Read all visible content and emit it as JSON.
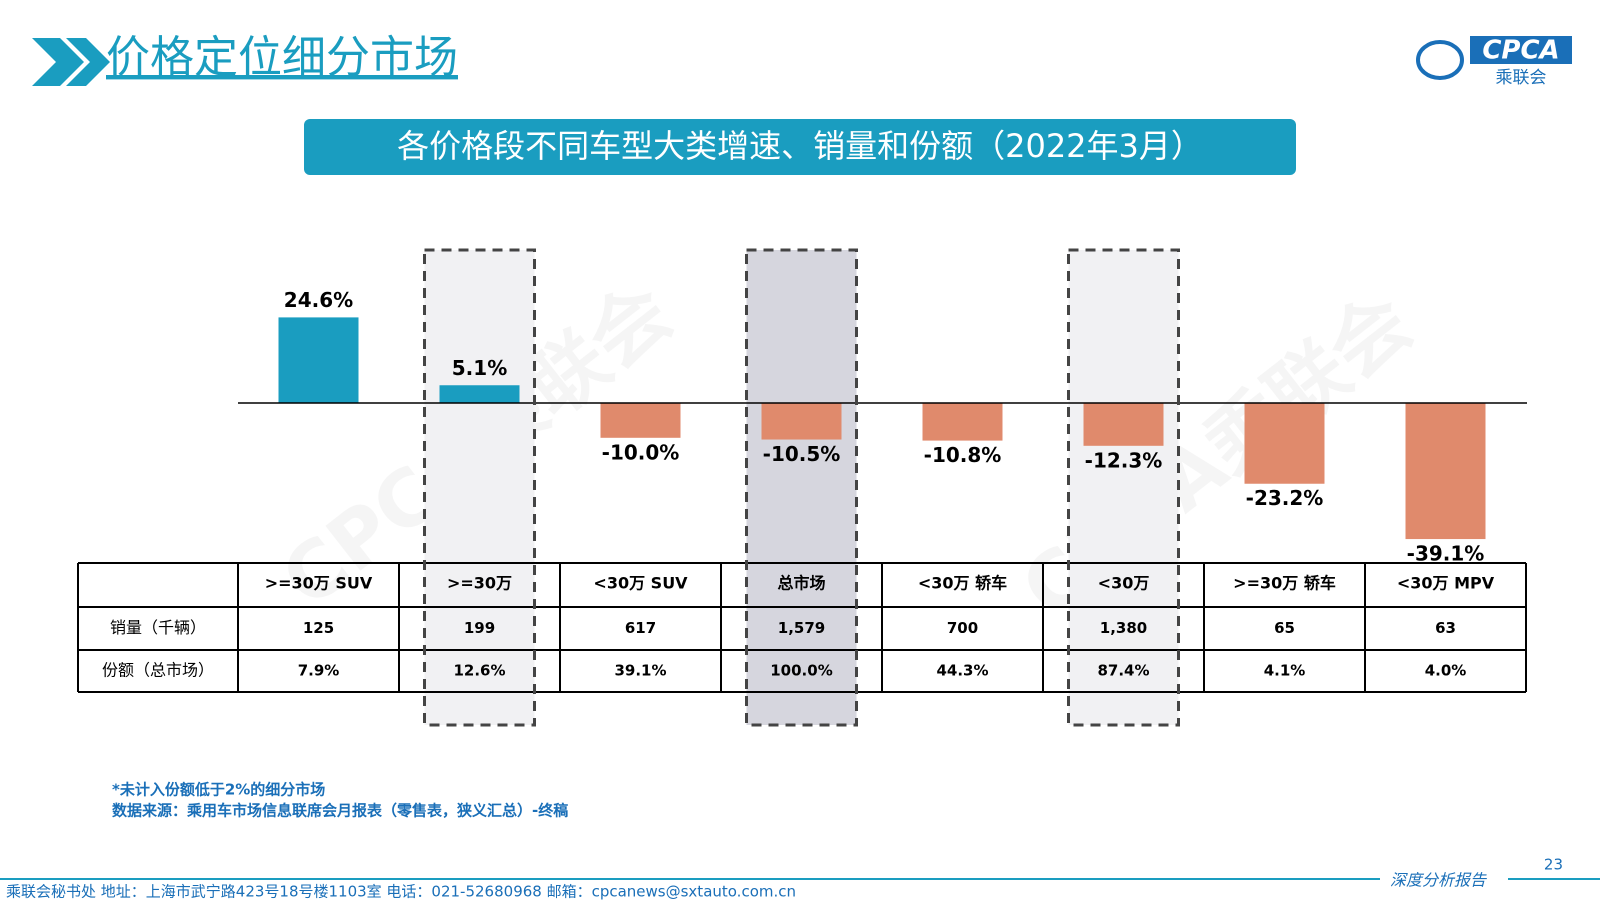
{
  "header": {
    "title": "价格定位细分市场",
    "logo": "CPCA",
    "logo_sub": "乘联会",
    "watermark": "CPCA乘联会"
  },
  "chart_data": {
    "type": "bar",
    "title": "各价格段不同车型大类增速、销量和份额（2022年3月）",
    "categories": [
      ">=30万 SUV",
      ">=30万",
      "<30万 SUV",
      "总市场",
      "<30万 轿车",
      "<30万",
      ">=30万 轿车",
      "<30万 MPV"
    ],
    "values": [
      24.6,
      5.1,
      -10.0,
      -10.5,
      -10.8,
      -12.3,
      -23.2,
      -39.1
    ],
    "value_labels": [
      "24.6%",
      "5.1%",
      "-10.0%",
      "-10.5%",
      "-10.8%",
      "-12.3%",
      "-23.2%",
      "-39.1%"
    ],
    "positive_color": "#1a9dc0",
    "negative_color": "#e08a6c"
  },
  "table": {
    "rows": [
      [
        "销量（千辆）",
        "125",
        "199",
        "617",
        "1,579",
        "700",
        "1,380",
        "65",
        "63"
      ],
      [
        "份额（总市场）",
        "7.9%",
        "12.6%",
        "39.1%",
        "100.0%",
        "44.3%",
        "87.4%",
        "4.1%",
        "4.0%"
      ]
    ]
  },
  "notes": [
    "*未计入份额低于2%的细分市场",
    "数据来源：乘用车市场信息联席会月报表（零售表，狭义汇总）-终稿"
  ],
  "footer": {
    "text": "乘联会秘书处  地址：上海市武宁路423号18号楼1103室  电话：021-52680968  邮箱：cpcanews@sxtauto.com.cn",
    "report": "深度分析报告",
    "page": "23"
  }
}
